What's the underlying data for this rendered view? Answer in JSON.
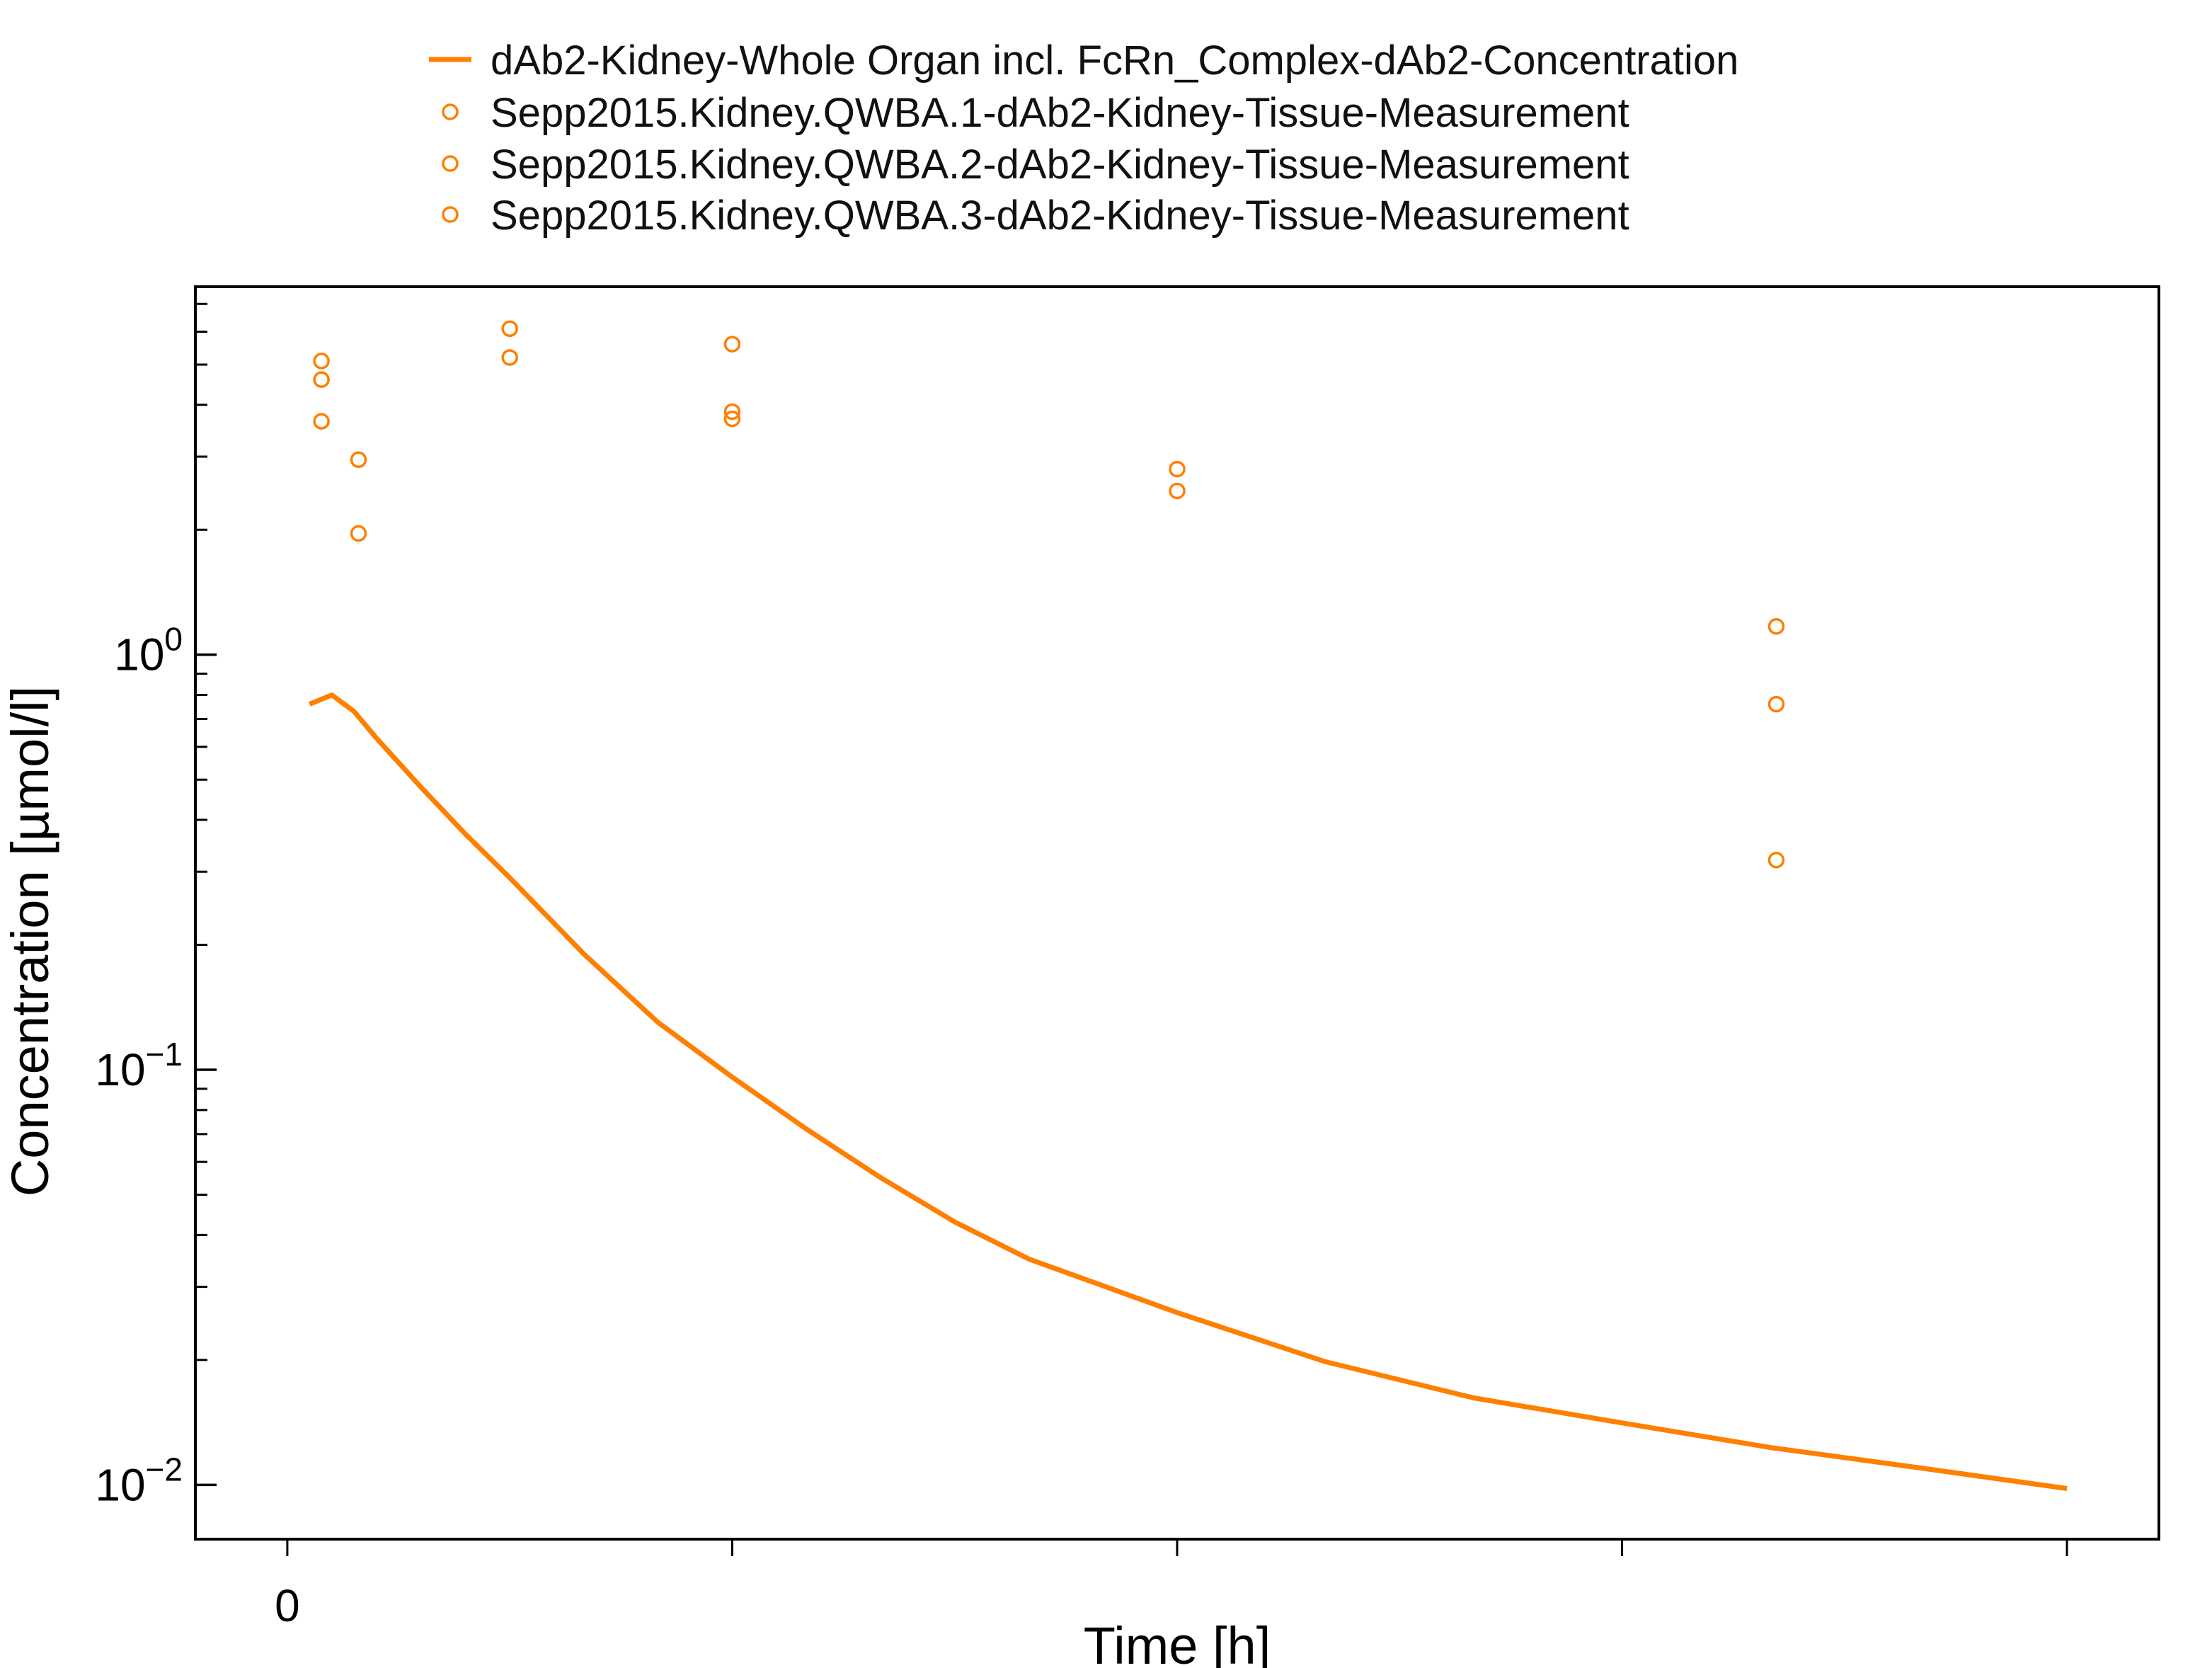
{
  "chart_data": {
    "type": "scatter",
    "title": "",
    "xlabel": "Time [h]",
    "ylabel": "Concentration [µmol/l]",
    "x_scale": "linear",
    "y_scale": "log",
    "xlim": [
      -6.2,
      126.2
    ],
    "ylim": [
      0.0074,
      7.7
    ],
    "x_ticks": [
      0,
      30,
      60,
      90,
      120
    ],
    "x_tick_labels": [
      "0",
      "",
      "",
      "",
      ""
    ],
    "y_major_ticks": [
      {
        "value": 1,
        "base": "10",
        "exp": "0"
      },
      {
        "value": 0.1,
        "base": "10",
        "exp": "−1"
      },
      {
        "value": 0.01,
        "base": "10",
        "exp": "−2"
      }
    ],
    "y_minor_ticks": [
      0.02,
      0.03,
      0.04,
      0.05,
      0.06,
      0.07,
      0.08,
      0.09,
      0.2,
      0.3,
      0.4,
      0.5,
      0.6,
      0.7,
      0.8,
      0.9,
      2,
      3,
      4,
      5,
      6,
      7
    ],
    "grid": false,
    "legend_position": "top",
    "colors": {
      "series": "#ff7f00",
      "axis": "#000000"
    },
    "series": [
      {
        "name": "dAb2-Kidney-Whole Organ incl. FcRn_Complex-dAb2-Concentration",
        "kind": "line",
        "x": [
          1.5,
          3,
          4.5,
          6,
          9,
          12,
          15,
          20,
          25,
          30,
          35,
          40,
          45,
          50,
          60,
          70,
          80,
          90,
          100,
          110,
          120
        ],
        "y": [
          0.76,
          0.8,
          0.73,
          0.63,
          0.48,
          0.37,
          0.29,
          0.19,
          0.13,
          0.096,
          0.072,
          0.055,
          0.043,
          0.035,
          0.026,
          0.0198,
          0.0162,
          0.0141,
          0.0123,
          0.011,
          0.0098
        ]
      },
      {
        "name": "Sepp2015.Kidney.QWBA.1-dAb2-Kidney-Tissue-Measurement",
        "kind": "scatter",
        "x": [
          2.3,
          4.8,
          15,
          30,
          60,
          100.4
        ],
        "y": [
          5.1,
          2.95,
          6.1,
          5.6,
          2.8,
          1.17
        ]
      },
      {
        "name": "Sepp2015.Kidney.QWBA.2-dAb2-Kidney-Tissue-Measurement",
        "kind": "scatter",
        "x": [
          2.3,
          4.8,
          15,
          30,
          60,
          100.4
        ],
        "y": [
          4.6,
          1.96,
          5.2,
          3.85,
          2.48,
          0.76
        ]
      },
      {
        "name": "Sepp2015.Kidney.QWBA.3-dAb2-Kidney-Tissue-Measurement",
        "kind": "scatter",
        "x": [
          2.3,
          30,
          100.4
        ],
        "y": [
          3.65,
          3.7,
          0.32
        ]
      }
    ]
  }
}
